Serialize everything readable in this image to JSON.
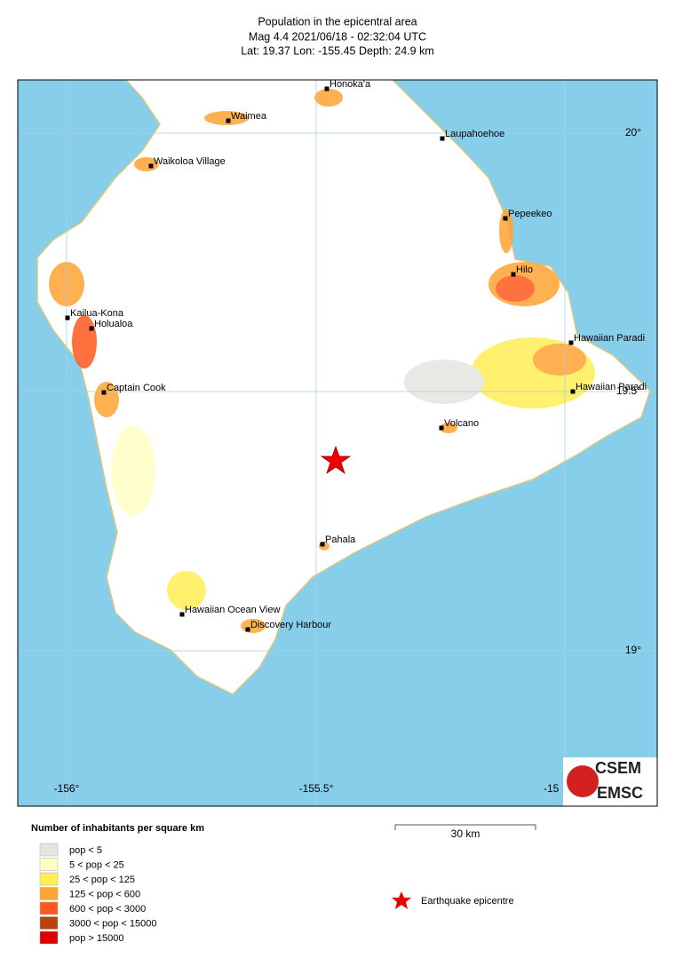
{
  "header": {
    "title": "Population in the epicentral area",
    "subtitle": "Mag 4.4  2021/06/18 - 02:32:04 UTC",
    "location": "Lat: 19.37    Lon: -155.45    Depth:  24.9 km"
  },
  "map": {
    "cities": [
      "Honoka'a",
      "Waimea",
      "Laupahoehoe",
      "Waikoloa Village",
      "Pepeekeo",
      "Hilo",
      "Kailua-Kona",
      "Holualoa",
      "Hawaiian Paradi",
      "Captain Cook",
      "Hawaiian Paradi",
      "Volcano",
      "Pahala",
      "Hawaiian Ocean View",
      "Discovery Harbour"
    ],
    "longitude_labels": [
      "-156°",
      "-155.5°",
      "-15"
    ],
    "latitude_labels": [
      "20°",
      "19.5°",
      "19°"
    ]
  },
  "scale_bar": "30 km",
  "legend": {
    "title": "Number of inhabitants per square km",
    "items": [
      {
        "label": "pop < 5",
        "color": "#e4e4e0"
      },
      {
        "label": "5 < pop < 25",
        "color": "#ffffc4"
      },
      {
        "label": "25 < pop < 125",
        "color": "#ffee55"
      },
      {
        "label": "125 < pop < 600",
        "color": "#ffa433"
      },
      {
        "label": "600 < pop < 3000",
        "color": "#ff5a1e"
      },
      {
        "label": "3000 < pop < 15000",
        "color": "#b8420e"
      },
      {
        "label": "pop > 15000",
        "color": "#dd0000"
      }
    ],
    "epicentre": "Earthquake epicentre"
  },
  "logo": {
    "top": "CSEM",
    "bottom": "EMSC"
  }
}
